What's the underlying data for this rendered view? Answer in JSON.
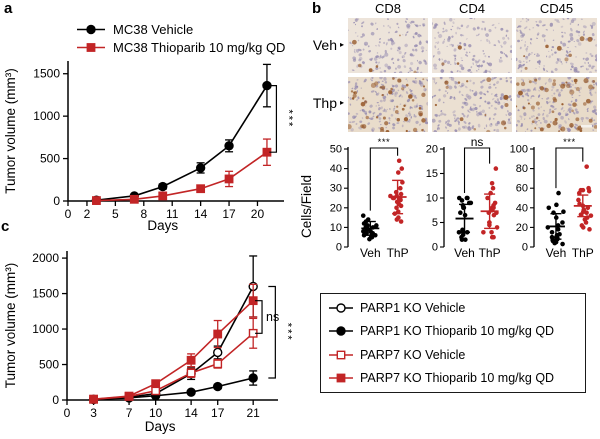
{
  "colors": {
    "black": "#000000",
    "accent_red": "#c22526",
    "tissue_nucleus": "#9187ae",
    "tissue_dab": "#96592a",
    "tissue_veh_bg": "#ede4da",
    "tissue_thp_bg": "#e9dccb"
  },
  "panel_a": {
    "label": "a"
  },
  "panel_c": {
    "label": "c"
  },
  "panel_b": {
    "label": "b",
    "scatter_ylabel": "Cells/Field",
    "ihc": {
      "columns": [
        "CD8",
        "CD4",
        "CD45"
      ],
      "rows": [
        "Veh",
        "Thp"
      ],
      "tiles": [
        {
          "row": "Veh",
          "col": "CD8",
          "bg": "#ede4da",
          "nuclei": 150,
          "dab": 6,
          "scalebar": false
        },
        {
          "row": "Veh",
          "col": "CD4",
          "bg": "#eee5db",
          "nuclei": 145,
          "dab": 3,
          "scalebar": false
        },
        {
          "row": "Veh",
          "col": "CD45",
          "bg": "#ece2d6",
          "nuclei": 155,
          "dab": 8,
          "scalebar": false
        },
        {
          "row": "Thp",
          "col": "CD8",
          "bg": "#e9dccb",
          "nuclei": 185,
          "dab": 48,
          "scalebar": false
        },
        {
          "row": "Thp",
          "col": "CD4",
          "bg": "#ebe0d2",
          "nuclei": 180,
          "dab": 14,
          "scalebar": false
        },
        {
          "row": "Thp",
          "col": "CD45",
          "bg": "#e8dbc9",
          "nuclei": 185,
          "dab": 52,
          "scalebar": true
        }
      ]
    }
  },
  "chart_data": [
    {
      "id": "a",
      "type": "line",
      "xlabel": "Days",
      "ylabel": "Tumor volume (mm³)",
      "xlim": [
        0,
        22.8
      ],
      "ylim": [
        0,
        1650
      ],
      "xticks": [
        0,
        2,
        5,
        8,
        11,
        14,
        17,
        20
      ],
      "yticks": [
        0,
        500,
        1000,
        1500
      ],
      "series": [
        {
          "name": "MC38 Vehicle",
          "marker": "circle",
          "fill": "filled",
          "color": "#000000",
          "x": [
            3,
            7,
            10,
            14,
            17,
            21
          ],
          "y": [
            10,
            60,
            170,
            390,
            650,
            1360
          ],
          "err": [
            5,
            15,
            30,
            60,
            70,
            250
          ]
        },
        {
          "name": "MC38 Thioparib 10 mg/kg QD",
          "marker": "square",
          "fill": "filled",
          "color": "#c22526",
          "x": [
            3,
            7,
            10,
            14,
            17,
            21
          ],
          "y": [
            5,
            20,
            60,
            145,
            260,
            575
          ],
          "err": [
            3,
            8,
            15,
            30,
            90,
            155
          ]
        }
      ],
      "brackets": [
        {
          "x": 22.0,
          "y1": 1360,
          "y2": 575,
          "label": "***",
          "rotate": true
        }
      ]
    },
    {
      "id": "c",
      "type": "line",
      "xlabel": "Days",
      "ylabel": "Tumor volume (mm³)",
      "xlim": [
        0,
        23.8
      ],
      "ylim": [
        0,
        2100
      ],
      "xticks": [
        0,
        3,
        7,
        10,
        14,
        17,
        21
      ],
      "yticks": [
        0,
        500,
        1000,
        1500,
        2000
      ],
      "series": [
        {
          "name": "PARP1 KO Vehicle",
          "marker": "circle",
          "fill": "open",
          "color": "#000000",
          "x": [
            3,
            7,
            10,
            14,
            17,
            21
          ],
          "y": [
            10,
            40,
            90,
            370,
            670,
            1600
          ],
          "err": [
            4,
            10,
            20,
            80,
            90,
            430
          ]
        },
        {
          "name": "PARP1 KO Thioparib 10 mg/kg QD",
          "marker": "circle",
          "fill": "filled",
          "color": "#000000",
          "x": [
            3,
            7,
            10,
            14,
            17,
            21
          ],
          "y": [
            8,
            30,
            60,
            110,
            190,
            310
          ],
          "err": [
            3,
            8,
            12,
            20,
            30,
            100
          ]
        },
        {
          "name": "PARP7 KO Vehicle",
          "marker": "square",
          "fill": "open",
          "color": "#c22526",
          "x": [
            3,
            7,
            10,
            14,
            17,
            21
          ],
          "y": [
            10,
            50,
            130,
            380,
            510,
            940
          ],
          "err": [
            4,
            12,
            25,
            60,
            60,
            210
          ]
        },
        {
          "name": "PARP7 KO Thioparib 10 mg/kg QD",
          "marker": "square",
          "fill": "filled",
          "color": "#c22526",
          "x": [
            3,
            7,
            10,
            14,
            17,
            21
          ],
          "y": [
            12,
            55,
            230,
            560,
            930,
            1400
          ],
          "err": [
            5,
            12,
            35,
            90,
            190,
            230
          ]
        }
      ],
      "brackets": [
        {
          "x": 22.0,
          "y1": 1400,
          "y2": 940,
          "label": "ns",
          "rotate": false
        },
        {
          "x": 23.5,
          "y1": 1600,
          "y2": 310,
          "label": "***",
          "rotate": true
        }
      ]
    },
    {
      "id": "cd8",
      "type": "scatter",
      "title": "CD8",
      "ylabel": "Cells/Field",
      "ylim": [
        0,
        50
      ],
      "yticks": [
        0,
        10,
        20,
        30,
        40,
        50
      ],
      "sig": "***",
      "groups": [
        {
          "label": "Veh",
          "color": "#000000",
          "points": [
            4,
            5,
            5,
            6,
            6,
            7,
            7,
            7,
            8,
            8,
            8,
            9,
            9,
            10,
            10,
            11,
            11,
            12,
            13,
            14,
            16
          ],
          "mean": 9.5,
          "sd_low": 6,
          "sd_high": 13
        },
        {
          "label": "ThP",
          "color": "#c22526",
          "points": [
            13,
            14,
            15,
            17,
            18,
            20,
            21,
            22,
            23,
            24,
            24,
            25,
            25,
            25,
            26,
            26,
            27,
            28,
            30,
            33,
            38,
            40,
            44
          ],
          "mean": 25.5,
          "sd_low": 17,
          "sd_high": 34
        }
      ]
    },
    {
      "id": "cd4",
      "type": "scatter",
      "title": "CD4",
      "ylabel": "Cells/Field",
      "ylim": [
        0,
        20
      ],
      "yticks": [
        0,
        5,
        10,
        15,
        20
      ],
      "sig": "ns",
      "groups": [
        {
          "label": "Veh",
          "color": "#000000",
          "points": [
            1.5,
            1.5,
            2,
            2.5,
            3,
            3,
            3,
            3.5,
            6.5,
            7,
            8,
            8,
            8.5,
            9,
            9,
            9.5,
            10,
            10,
            10
          ],
          "mean": 5.8,
          "sd_low": 3,
          "sd_high": 8.7
        },
        {
          "label": "ThP",
          "color": "#c22526",
          "points": [
            2,
            2,
            3,
            3,
            4,
            4.5,
            5,
            5,
            6.5,
            7,
            7,
            7.5,
            7.5,
            8,
            8,
            8.5,
            9,
            10,
            11,
            12,
            13,
            16
          ],
          "mean": 7.3,
          "sd_low": 3.8,
          "sd_high": 10.8
        }
      ]
    },
    {
      "id": "cd45",
      "type": "scatter",
      "title": "CD45",
      "ylabel": "Cells/Field",
      "ylim": [
        0,
        100
      ],
      "yticks": [
        0,
        20,
        40,
        60,
        80,
        100
      ],
      "sig": "***",
      "groups": [
        {
          "label": "Veh",
          "color": "#000000",
          "points": [
            3,
            4,
            5,
            6,
            7,
            8,
            8,
            9,
            10,
            10,
            12,
            13,
            15,
            18,
            20,
            22,
            25,
            30,
            35,
            36,
            40,
            43,
            55
          ],
          "mean": 21,
          "sd_low": 8,
          "sd_high": 34
        },
        {
          "label": "ThP",
          "color": "#c22526",
          "points": [
            18,
            20,
            22,
            25,
            28,
            30,
            32,
            33,
            35,
            36,
            38,
            40,
            42,
            44,
            48,
            55,
            57,
            58,
            58,
            60,
            82
          ],
          "mean": 42,
          "sd_low": 31,
          "sd_high": 53
        }
      ]
    }
  ]
}
